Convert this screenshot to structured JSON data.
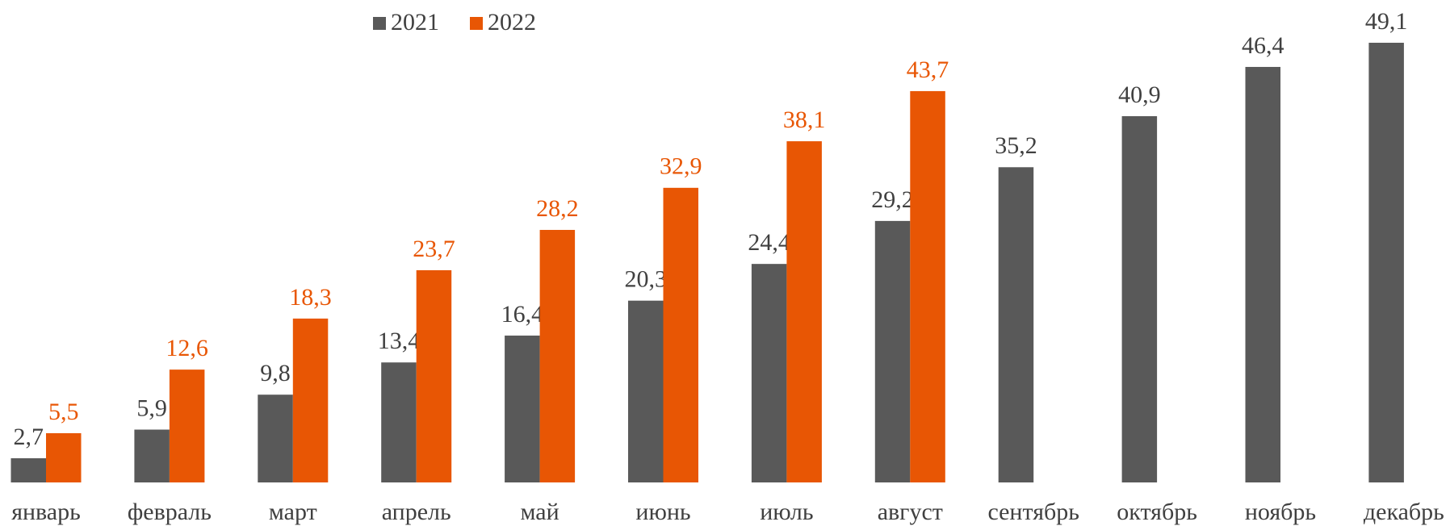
{
  "chart_data": {
    "type": "bar",
    "categories": [
      "январь",
      "февраль",
      "март",
      "апрель",
      "май",
      "июнь",
      "июль",
      "август",
      "сентябрь",
      "октябрь",
      "ноябрь",
      "декабрь"
    ],
    "series": [
      {
        "name": "2021",
        "color": "#595959",
        "label_color": "#404040",
        "values": [
          2.7,
          5.9,
          9.8,
          13.4,
          16.4,
          20.3,
          24.4,
          29.2,
          35.2,
          40.9,
          46.4,
          49.1
        ],
        "value_labels": [
          "2,7",
          "5,9",
          "9,8",
          "13,4",
          "16,4",
          "20,3",
          "24,4",
          "29,2",
          "35,2",
          "40,9",
          "46,4",
          "49,1"
        ]
      },
      {
        "name": "2022",
        "color": "#e85604",
        "label_color": "#e85604",
        "values": [
          5.5,
          12.6,
          18.3,
          23.7,
          28.2,
          32.9,
          38.1,
          43.7,
          null,
          null,
          null,
          null
        ],
        "value_labels": [
          "5,5",
          "12,6",
          "18,3",
          "23,7",
          "28,2",
          "32,9",
          "38,1",
          "43,7",
          null,
          null,
          null,
          null
        ]
      }
    ],
    "ylim": [
      0,
      50
    ],
    "legend": "top"
  }
}
